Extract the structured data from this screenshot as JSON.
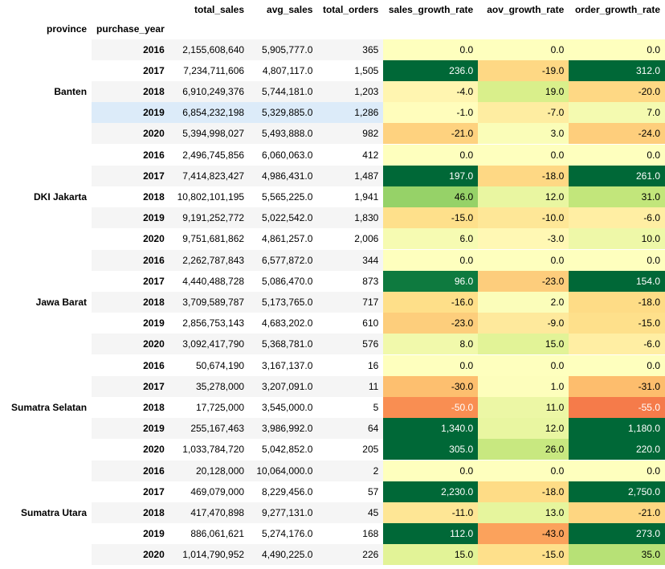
{
  "table": {
    "headers": {
      "total_sales": "total_sales",
      "avg_sales": "avg_sales",
      "total_orders": "total_orders",
      "sales_growth_rate": "sales_growth_rate",
      "aov_growth_rate": "aov_growth_rate",
      "order_growth_rate": "order_growth_rate",
      "province": "province",
      "purchase_year": "purchase_year"
    },
    "groups": [
      {
        "province": "Banten",
        "rows": [
          {
            "year": "2016",
            "total_sales": "2,155,608,640",
            "avg_sales": "5,905,777.0",
            "total_orders": "365",
            "sales_growth_rate": "0.0",
            "aov_growth_rate": "0.0",
            "order_growth_rate": "0.0",
            "sales_color": "#feffbe",
            "aov_color": "#feffbe",
            "order_color": "#feffbe",
            "sales_text": "#000000",
            "aov_text": "#000000",
            "order_text": "#000000"
          },
          {
            "year": "2017",
            "total_sales": "7,234,711,606",
            "avg_sales": "4,807,117.0",
            "total_orders": "1,505",
            "sales_growth_rate": "236.0",
            "aov_growth_rate": "-19.0",
            "order_growth_rate": "312.0",
            "sales_color": "#006837",
            "aov_color": "#fed884",
            "order_color": "#006837",
            "sales_text": "#ffffff",
            "aov_text": "#000000",
            "order_text": "#ffffff"
          },
          {
            "year": "2018",
            "total_sales": "6,910,249,376",
            "avg_sales": "5,744,181.0",
            "total_orders": "1,203",
            "sales_growth_rate": "-4.0",
            "aov_growth_rate": "19.0",
            "order_growth_rate": "-20.0",
            "sales_color": "#fff5b0",
            "aov_color": "#d9ef8b",
            "order_color": "#fed884",
            "sales_text": "#000000",
            "aov_text": "#000000",
            "order_text": "#000000"
          },
          {
            "year": "2019",
            "total_sales": "6,854,232,198",
            "avg_sales": "5,329,885.0",
            "total_orders": "1,286",
            "sales_growth_rate": "-1.0",
            "aov_growth_rate": "-7.0",
            "order_growth_rate": "7.0",
            "sales_color": "#fffdbc",
            "aov_color": "#feeda1",
            "order_color": "#f4fab0",
            "sales_text": "#000000",
            "aov_text": "#000000",
            "order_text": "#000000"
          },
          {
            "year": "2020",
            "total_sales": "5,394,998,027",
            "avg_sales": "5,493,888.0",
            "total_orders": "982",
            "sales_growth_rate": "-21.0",
            "aov_growth_rate": "3.0",
            "order_growth_rate": "-24.0",
            "sales_color": "#fed27f",
            "aov_color": "#fafdb8",
            "order_color": "#fece7c",
            "sales_text": "#000000",
            "aov_text": "#000000",
            "order_text": "#000000"
          }
        ]
      },
      {
        "province": "DKI Jakarta",
        "rows": [
          {
            "year": "2016",
            "total_sales": "2,496,745,856",
            "avg_sales": "6,060,063.0",
            "total_orders": "412",
            "sales_growth_rate": "0.0",
            "aov_growth_rate": "0.0",
            "order_growth_rate": "0.0",
            "sales_color": "#feffbe",
            "aov_color": "#feffbe",
            "order_color": "#feffbe",
            "sales_text": "#000000",
            "aov_text": "#000000",
            "order_text": "#000000"
          },
          {
            "year": "2017",
            "total_sales": "7,414,823,427",
            "avg_sales": "4,986,431.0",
            "total_orders": "1,487",
            "sales_growth_rate": "197.0",
            "aov_growth_rate": "-18.0",
            "order_growth_rate": "261.0",
            "sales_color": "#006837",
            "aov_color": "#fed884",
            "order_color": "#006837",
            "sales_text": "#ffffff",
            "aov_text": "#000000",
            "order_text": "#ffffff"
          },
          {
            "year": "2018",
            "total_sales": "10,802,101,195",
            "avg_sales": "5,565,225.0",
            "total_orders": "1,941",
            "sales_growth_rate": "46.0",
            "aov_growth_rate": "12.0",
            "order_growth_rate": "31.0",
            "sales_color": "#96d268",
            "aov_color": "#e9f6a1",
            "order_color": "#c2e67b",
            "sales_text": "#000000",
            "aov_text": "#000000",
            "order_text": "#000000"
          },
          {
            "year": "2019",
            "total_sales": "9,191,252,772",
            "avg_sales": "5,022,542.0",
            "total_orders": "1,830",
            "sales_growth_rate": "-15.0",
            "aov_growth_rate": "-10.0",
            "order_growth_rate": "-6.0",
            "sales_color": "#fee08b",
            "aov_color": "#fee797",
            "order_color": "#ffeea3",
            "sales_text": "#000000",
            "aov_text": "#000000",
            "order_text": "#000000"
          },
          {
            "year": "2020",
            "total_sales": "9,751,681,862",
            "avg_sales": "4,861,257.0",
            "total_orders": "2,006",
            "sales_growth_rate": "6.0",
            "aov_growth_rate": "-3.0",
            "order_growth_rate": "10.0",
            "sales_color": "#f6fbb2",
            "aov_color": "#fff8b4",
            "order_color": "#eef8a8",
            "sales_text": "#000000",
            "aov_text": "#000000",
            "order_text": "#000000"
          }
        ]
      },
      {
        "province": "Jawa Barat",
        "rows": [
          {
            "year": "2016",
            "total_sales": "2,262,787,843",
            "avg_sales": "6,577,872.0",
            "total_orders": "344",
            "sales_growth_rate": "0.0",
            "aov_growth_rate": "0.0",
            "order_growth_rate": "0.0",
            "sales_color": "#feffbe",
            "aov_color": "#feffbe",
            "order_color": "#feffbe",
            "sales_text": "#000000",
            "aov_text": "#000000",
            "order_text": "#000000"
          },
          {
            "year": "2017",
            "total_sales": "4,440,488,728",
            "avg_sales": "5,086,470.0",
            "total_orders": "873",
            "sales_growth_rate": "96.0",
            "aov_growth_rate": "-23.0",
            "order_growth_rate": "154.0",
            "sales_color": "#0e7a3f",
            "aov_color": "#fdcd7c",
            "order_color": "#006837",
            "sales_text": "#ffffff",
            "aov_text": "#000000",
            "order_text": "#ffffff"
          },
          {
            "year": "2018",
            "total_sales": "3,709,589,787",
            "avg_sales": "5,173,765.0",
            "total_orders": "717",
            "sales_growth_rate": "-16.0",
            "aov_growth_rate": "2.0",
            "order_growth_rate": "-18.0",
            "sales_color": "#fedf89",
            "aov_color": "#fbfdba",
            "order_color": "#fedc86",
            "sales_text": "#000000",
            "aov_text": "#000000",
            "order_text": "#000000"
          },
          {
            "year": "2019",
            "total_sales": "2,856,753,143",
            "avg_sales": "4,683,202.0",
            "total_orders": "610",
            "sales_growth_rate": "-23.0",
            "aov_growth_rate": "-9.0",
            "order_growth_rate": "-15.0",
            "sales_color": "#fdce7c",
            "aov_color": "#fee99c",
            "order_color": "#fee08b",
            "sales_text": "#000000",
            "aov_text": "#000000",
            "order_text": "#000000"
          },
          {
            "year": "2020",
            "total_sales": "3,092,417,790",
            "avg_sales": "5,368,781.0",
            "total_orders": "576",
            "sales_growth_rate": "8.0",
            "aov_growth_rate": "15.0",
            "order_growth_rate": "-6.0",
            "sales_color": "#f1f9ab",
            "aov_color": "#e2f397",
            "order_color": "#ffeea3",
            "sales_text": "#000000",
            "aov_text": "#000000",
            "order_text": "#000000"
          }
        ]
      },
      {
        "province": "Sumatra Selatan",
        "rows": [
          {
            "year": "2016",
            "total_sales": "50,674,190",
            "avg_sales": "3,167,137.0",
            "total_orders": "16",
            "sales_growth_rate": "0.0",
            "aov_growth_rate": "0.0",
            "order_growth_rate": "0.0",
            "sales_color": "#feffbe",
            "aov_color": "#feffbe",
            "order_color": "#feffbe",
            "sales_text": "#000000",
            "aov_text": "#000000",
            "order_text": "#000000"
          },
          {
            "year": "2017",
            "total_sales": "35,278,000",
            "avg_sales": "3,207,091.0",
            "total_orders": "11",
            "sales_growth_rate": "-30.0",
            "aov_growth_rate": "1.0",
            "order_growth_rate": "-31.0",
            "sales_color": "#fdbf6f",
            "aov_color": "#fdfebc",
            "order_color": "#fdbd6d",
            "sales_text": "#000000",
            "aov_text": "#000000",
            "order_text": "#000000"
          },
          {
            "year": "2018",
            "total_sales": "17,725,000",
            "avg_sales": "3,545,000.0",
            "total_orders": "5",
            "sales_growth_rate": "-50.0",
            "aov_growth_rate": "11.0",
            "order_growth_rate": "-55.0",
            "sales_color": "#f98e52",
            "aov_color": "#ecf7a5",
            "order_color": "#f57b4a",
            "sales_text": "#ffffff",
            "aov_text": "#000000",
            "order_text": "#ffffff"
          },
          {
            "year": "2019",
            "total_sales": "255,167,463",
            "avg_sales": "3,986,992.0",
            "total_orders": "64",
            "sales_growth_rate": "1,340.0",
            "aov_growth_rate": "12.0",
            "order_growth_rate": "1,180.0",
            "sales_color": "#006837",
            "aov_color": "#e9f6a1",
            "order_color": "#006837",
            "sales_text": "#ffffff",
            "aov_text": "#000000",
            "order_text": "#ffffff"
          },
          {
            "year": "2020",
            "total_sales": "1,033,784,720",
            "avg_sales": "5,042,852.0",
            "total_orders": "205",
            "sales_growth_rate": "305.0",
            "aov_growth_rate": "26.0",
            "order_growth_rate": "220.0",
            "sales_color": "#006837",
            "aov_color": "#c8e880",
            "order_color": "#006837",
            "sales_text": "#ffffff",
            "aov_text": "#000000",
            "order_text": "#ffffff"
          }
        ]
      },
      {
        "province": "Sumatra Utara",
        "rows": [
          {
            "year": "2016",
            "total_sales": "20,128,000",
            "avg_sales": "10,064,000.0",
            "total_orders": "2",
            "sales_growth_rate": "0.0",
            "aov_growth_rate": "0.0",
            "order_growth_rate": "0.0",
            "sales_color": "#feffbe",
            "aov_color": "#feffbe",
            "order_color": "#feffbe",
            "sales_text": "#000000",
            "aov_text": "#000000",
            "order_text": "#000000"
          },
          {
            "year": "2017",
            "total_sales": "469,079,000",
            "avg_sales": "8,229,456.0",
            "total_orders": "57",
            "sales_growth_rate": "2,230.0",
            "aov_growth_rate": "-18.0",
            "order_growth_rate": "2,750.0",
            "sales_color": "#006837",
            "aov_color": "#fedc86",
            "order_color": "#006837",
            "sales_text": "#ffffff",
            "aov_text": "#000000",
            "order_text": "#ffffff"
          },
          {
            "year": "2018",
            "total_sales": "417,470,898",
            "avg_sales": "9,277,131.0",
            "total_orders": "45",
            "sales_growth_rate": "-11.0",
            "aov_growth_rate": "13.0",
            "order_growth_rate": "-21.0",
            "sales_color": "#fee695",
            "aov_color": "#e6f59d",
            "order_color": "#fed681",
            "sales_text": "#000000",
            "aov_text": "#000000",
            "order_text": "#000000"
          },
          {
            "year": "2019",
            "total_sales": "886,061,621",
            "avg_sales": "5,274,176.0",
            "total_orders": "168",
            "sales_growth_rate": "112.0",
            "aov_growth_rate": "-43.0",
            "order_growth_rate": "273.0",
            "sales_color": "#006837",
            "aov_color": "#fba25c",
            "order_color": "#006837",
            "sales_text": "#ffffff",
            "aov_text": "#000000",
            "order_text": "#ffffff"
          },
          {
            "year": "2020",
            "total_sales": "1,014,790,952",
            "avg_sales": "4,490,225.0",
            "total_orders": "226",
            "sales_growth_rate": "15.0",
            "aov_growth_rate": "-15.0",
            "order_growth_rate": "35.0",
            "sales_color": "#e2f397",
            "aov_color": "#fee08b",
            "order_color": "#b7e176",
            "sales_text": "#000000",
            "aov_text": "#000000",
            "order_text": "#000000"
          }
        ]
      }
    ],
    "highlighted_row": {
      "group": 0,
      "row": 3
    }
  }
}
